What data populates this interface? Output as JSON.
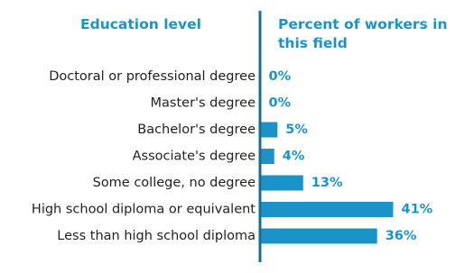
{
  "chart_data": {
    "type": "bar",
    "orientation": "horizontal",
    "category_header": "Education level",
    "value_header": "Percent of workers in this field",
    "categories": [
      "Doctoral or professional degree",
      "Master's degree",
      "Bachelor's degree",
      "Associate's degree",
      "Some college, no degree",
      "High school diploma or equivalent",
      "Less than high school diploma"
    ],
    "values": [
      0,
      0,
      5,
      4,
      13,
      41,
      36
    ],
    "value_labels": [
      "0%",
      "0%",
      "5%",
      "4%",
      "13%",
      "41%",
      "36%"
    ],
    "color": "#1a94c8"
  }
}
